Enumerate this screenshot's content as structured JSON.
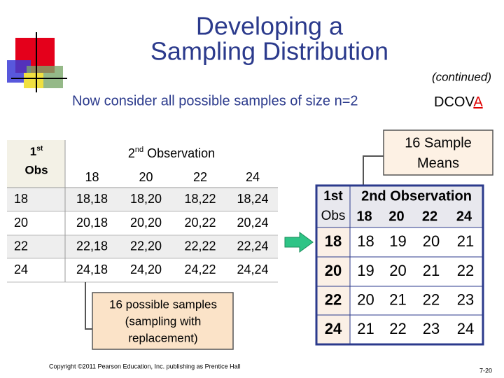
{
  "title_lines": [
    "Developing a",
    "Sampling Distribution"
  ],
  "continued": "(continued)",
  "subtitle": "Now consider all possible samples of size n=2",
  "logo": {
    "main": "DCOV",
    "highlight": "A"
  },
  "left_table": {
    "corner": {
      "ordinal": "1",
      "suffix": "st",
      "label": "Obs"
    },
    "header": {
      "ordinal": "2",
      "suffix": "nd",
      "label": "Observation"
    },
    "columns": [
      "18",
      "20",
      "22",
      "24"
    ],
    "rows": [
      {
        "label": "18",
        "cells": [
          "18,18",
          "18,20",
          "18,22",
          "18,24"
        ]
      },
      {
        "label": "20",
        "cells": [
          "20,18",
          "20,20",
          "20,22",
          "20,24"
        ]
      },
      {
        "label": "22",
        "cells": [
          "22,18",
          "22,20",
          "22,22",
          "22,24"
        ]
      },
      {
        "label": "24",
        "cells": [
          "24,18",
          "24,20",
          "24,22",
          "24,24"
        ]
      }
    ]
  },
  "left_callout": [
    "16 possible samples",
    "(sampling with",
    "replacement)"
  ],
  "right_callout": [
    "16 Sample",
    "Means"
  ],
  "right_table": {
    "corner": [
      "1st",
      "Obs"
    ],
    "header": "2nd Observation",
    "columns": [
      "18",
      "20",
      "22",
      "24"
    ],
    "rows": [
      {
        "label": "18",
        "cells": [
          "18",
          "19",
          "20",
          "21"
        ]
      },
      {
        "label": "20",
        "cells": [
          "19",
          "20",
          "21",
          "22"
        ]
      },
      {
        "label": "22",
        "cells": [
          "20",
          "21",
          "22",
          "23"
        ]
      },
      {
        "label": "24",
        "cells": [
          "21",
          "22",
          "23",
          "24"
        ]
      }
    ]
  },
  "footer": "Copyright ©2011 Pearson Education, Inc. publishing as Prentice Hall",
  "page_number": "7-20"
}
